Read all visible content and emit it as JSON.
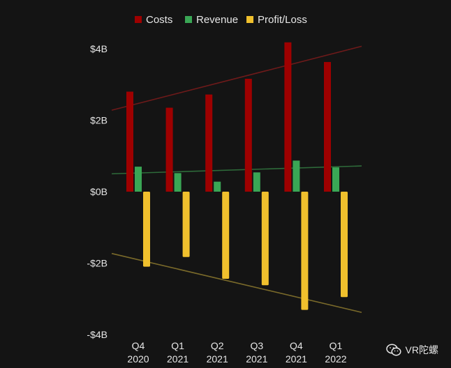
{
  "chart_data": {
    "type": "bar",
    "categories": [
      [
        "Q4",
        "2020"
      ],
      [
        "Q1",
        "2021"
      ],
      [
        "Q2",
        "2021"
      ],
      [
        "Q3",
        "2021"
      ],
      [
        "Q4",
        "2021"
      ],
      [
        "Q1",
        "2022"
      ]
    ],
    "series": [
      {
        "name": "Costs",
        "color": "#9e0000",
        "values": [
          2.8,
          2.35,
          2.72,
          3.16,
          4.18,
          3.63
        ]
      },
      {
        "name": "Revenue",
        "color": "#3aa655",
        "values": [
          0.7,
          0.52,
          0.28,
          0.54,
          0.87,
          0.68
        ]
      },
      {
        "name": "Profit/Loss",
        "color": "#f0c02d",
        "values": [
          -2.1,
          -1.83,
          -2.44,
          -2.62,
          -3.31,
          -2.95
        ]
      }
    ],
    "trendlines": [
      {
        "series": "Costs",
        "color": "#6e1a1a",
        "start": 2.28,
        "end": 4.07
      },
      {
        "series": "Revenue",
        "color": "#2e6b3a",
        "start": 0.5,
        "end": 0.72
      },
      {
        "series": "Profit/Loss",
        "color": "#7a6a2a",
        "start": -1.73,
        "end": -3.38
      }
    ],
    "yticks": [
      {
        "value": 4,
        "label": "$4B"
      },
      {
        "value": 2,
        "label": "$2B"
      },
      {
        "value": 0,
        "label": "$0B"
      },
      {
        "value": -2,
        "label": "-$2B"
      },
      {
        "value": -4,
        "label": "-$4B"
      }
    ],
    "ylim": [
      -4,
      4
    ],
    "grid": false,
    "legend_position": "top-center"
  },
  "watermark": {
    "text": "VR陀螺",
    "icon": "wechat-icon"
  }
}
